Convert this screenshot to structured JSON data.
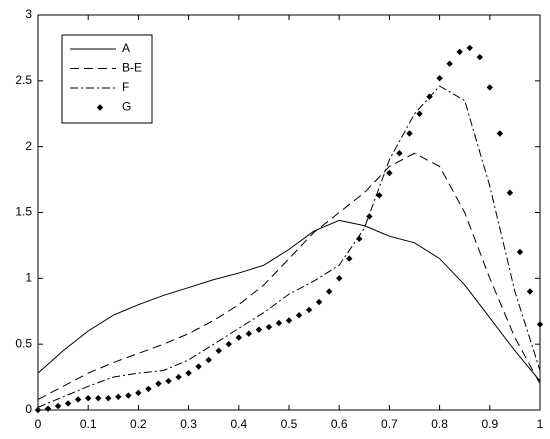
{
  "chart_data": {
    "type": "line",
    "xlim": [
      0,
      1
    ],
    "xticks": [
      0,
      0.1,
      0.2,
      0.3,
      0.4,
      0.5,
      0.6,
      0.7,
      0.8,
      0.9,
      1
    ],
    "ylim": [
      0,
      3
    ],
    "yticks": [
      0,
      0.5,
      1,
      1.5,
      2,
      2.5,
      3
    ],
    "grid": false,
    "legend": "upper-left",
    "series": [
      {
        "name": "A",
        "color": "#000000",
        "style": "solid",
        "x": [
          0,
          0.05,
          0.1,
          0.15,
          0.2,
          0.25,
          0.3,
          0.35,
          0.4,
          0.45,
          0.5,
          0.55,
          0.6,
          0.65,
          0.7,
          0.75,
          0.8,
          0.85,
          0.9,
          0.95,
          1
        ],
        "values": [
          0.28,
          0.45,
          0.6,
          0.72,
          0.8,
          0.87,
          0.93,
          0.99,
          1.04,
          1.1,
          1.22,
          1.36,
          1.44,
          1.4,
          1.32,
          1.27,
          1.15,
          0.95,
          0.7,
          0.45,
          0.22
        ]
      },
      {
        "name": "B-E",
        "color": "#000000",
        "style": "dashed",
        "x": [
          0,
          0.05,
          0.1,
          0.15,
          0.2,
          0.25,
          0.3,
          0.35,
          0.4,
          0.45,
          0.5,
          0.55,
          0.6,
          0.65,
          0.7,
          0.75,
          0.8,
          0.85,
          0.9,
          0.95,
          1
        ],
        "values": [
          0.08,
          0.18,
          0.28,
          0.36,
          0.43,
          0.5,
          0.58,
          0.68,
          0.8,
          0.95,
          1.15,
          1.35,
          1.5,
          1.65,
          1.85,
          1.95,
          1.85,
          1.5,
          1.0,
          0.55,
          0.2
        ]
      },
      {
        "name": "F",
        "color": "#000000",
        "style": "dashdot",
        "x": [
          0,
          0.05,
          0.1,
          0.15,
          0.2,
          0.25,
          0.3,
          0.35,
          0.4,
          0.45,
          0.5,
          0.55,
          0.6,
          0.65,
          0.7,
          0.75,
          0.8,
          0.85,
          0.9,
          0.95,
          1
        ],
        "values": [
          0.02,
          0.1,
          0.18,
          0.25,
          0.28,
          0.3,
          0.38,
          0.5,
          0.62,
          0.74,
          0.88,
          0.98,
          1.1,
          1.38,
          1.9,
          2.25,
          2.46,
          2.35,
          1.7,
          0.9,
          0.3
        ]
      },
      {
        "name": "G",
        "color": "#000000",
        "style": "diamond",
        "x": [
          0,
          0.02,
          0.04,
          0.06,
          0.08,
          0.1,
          0.12,
          0.14,
          0.16,
          0.18,
          0.2,
          0.22,
          0.24,
          0.26,
          0.28,
          0.3,
          0.32,
          0.34,
          0.36,
          0.38,
          0.4,
          0.42,
          0.44,
          0.46,
          0.48,
          0.5,
          0.52,
          0.54,
          0.56,
          0.58,
          0.6,
          0.62,
          0.64,
          0.66,
          0.68,
          0.7,
          0.72,
          0.74,
          0.76,
          0.78,
          0.8,
          0.82,
          0.84,
          0.86,
          0.88,
          0.9,
          0.92,
          0.94,
          0.96,
          0.98,
          1
        ],
        "values": [
          0,
          0.01,
          0.03,
          0.05,
          0.08,
          0.09,
          0.09,
          0.09,
          0.1,
          0.11,
          0.13,
          0.16,
          0.2,
          0.22,
          0.25,
          0.28,
          0.33,
          0.38,
          0.45,
          0.5,
          0.55,
          0.58,
          0.61,
          0.63,
          0.66,
          0.68,
          0.72,
          0.76,
          0.82,
          0.9,
          1.0,
          1.15,
          1.3,
          1.47,
          1.63,
          1.8,
          1.95,
          2.1,
          2.25,
          2.38,
          2.52,
          2.63,
          2.72,
          2.75,
          2.68,
          2.45,
          2.1,
          1.65,
          1.2,
          0.9,
          0.65
        ]
      }
    ]
  }
}
